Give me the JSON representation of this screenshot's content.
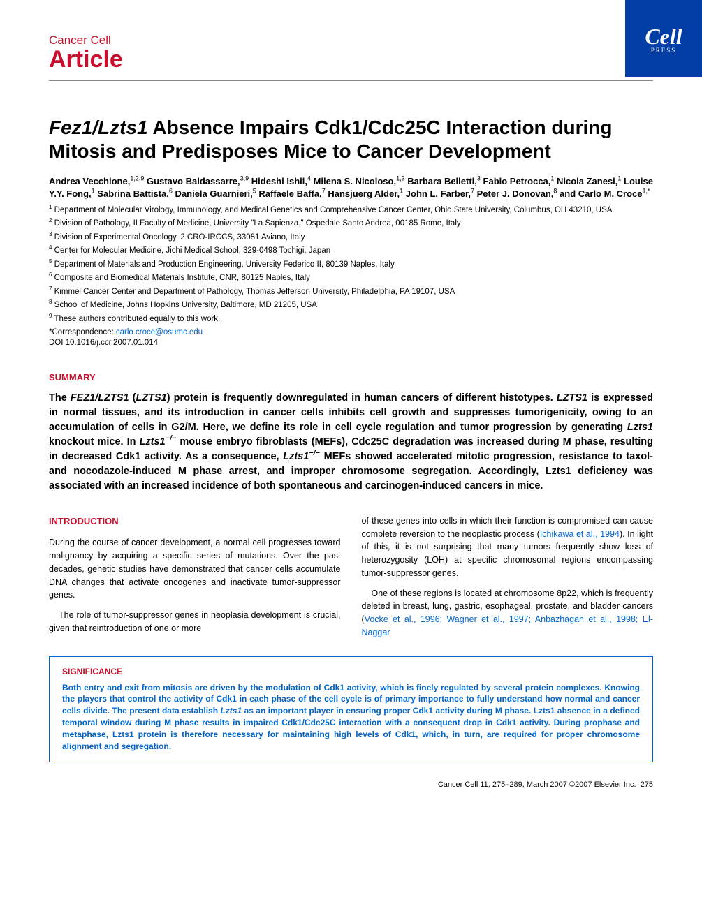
{
  "header": {
    "journal": "Cancer Cell",
    "type": "Article",
    "badge_main": "Cell",
    "badge_sub": "PRESS"
  },
  "title_html": "<span class='italic'>Fez1/Lzts1</span> Absence Impairs Cdk1/Cdc25C Interaction during Mitosis and Predisposes Mice to Cancer Development",
  "authors_html": "Andrea Vecchione,<sup>1,2,9</sup> Gustavo Baldassarre,<sup>3,9</sup> Hideshi Ishii,<sup>4</sup> Milena S. Nicoloso,<sup>1,3</sup> Barbara Belletti,<sup>3</sup> Fabio Petrocca,<sup>1</sup> Nicola Zanesi,<sup>1</sup> Louise Y.Y. Fong,<sup>1</sup> Sabrina Battista,<sup>6</sup> Daniela Guarnieri,<sup>5</sup> Raffaele Baffa,<sup>7</sup> Hansjuerg Alder,<sup>1</sup> John L. Farber,<sup>7</sup> Peter J. Donovan,<sup>8</sup> and Carlo M. Croce<sup>1,*</sup>",
  "affiliations": [
    "<sup>1</sup> Department of Molecular Virology, Immunology, and Medical Genetics and Comprehensive Cancer Center, Ohio State University, Columbus, OH 43210, USA",
    "<sup>2</sup> Division of Pathology, II Faculty of Medicine, University \"La Sapienza,\" Ospedale Santo Andrea, 00185 Rome, Italy",
    "<sup>3</sup> Division of Experimental Oncology, 2 CRO-IRCCS, 33081 Aviano, Italy",
    "<sup>4</sup> Center for Molecular Medicine, Jichi Medical School, 329-0498 Tochigi, Japan",
    "<sup>5</sup> Department of Materials and Production Engineering, University Federico II, 80139 Naples, Italy",
    "<sup>6</sup> Composite and Biomedical Materials Institute, CNR, 80125 Naples, Italy",
    "<sup>7</sup> Kimmel Cancer Center and Department of Pathology, Thomas Jefferson University, Philadelphia, PA 19107, USA",
    "<sup>8</sup> School of Medicine, Johns Hopkins University, Baltimore, MD 21205, USA",
    "<sup>9</sup> These authors contributed equally to this work."
  ],
  "correspondence_label": "*Correspondence: ",
  "correspondence_email": "carlo.croce@osumc.edu",
  "doi": "DOI 10.1016/j.ccr.2007.01.014",
  "sections": {
    "summary": {
      "heading": "SUMMARY",
      "text_html": "The <span class='italic'>FEZ1/LZTS1</span> (<span class='italic'>LZTS1</span>) protein is frequently downregulated in human cancers of different histotypes. <span class='italic'>LZTS1</span> is expressed in normal tissues, and its introduction in cancer cells inhibits cell growth and suppresses tumorigenicity, owing to an accumulation of cells in G2/M. Here, we define its role in cell cycle regulation and tumor progression by generating <span class='italic'>Lzts1</span> knockout mice. In <span class='italic'>Lzts1<sup>−/−</sup></span> mouse embryo fibroblasts (MEFs), Cdc25C degradation was increased during M phase, resulting in decreased Cdk1 activity. As a consequence, <span class='italic'>Lzts1<sup>−/−</sup></span> MEFs showed accelerated mitotic progression, resistance to taxol- and nocodazole-induced M phase arrest, and improper chromosome segregation. Accordingly, Lzts1 deficiency was associated with an increased incidence of both spontaneous and carcinogen-induced cancers in mice."
    },
    "introduction": {
      "heading": "INTRODUCTION",
      "col1_html": "<p>During the course of cancer development, a normal cell progresses toward malignancy by acquiring a specific series of mutations. Over the past decades, genetic studies have demonstrated that cancer cells accumulate DNA changes that activate oncogenes and inactivate tumor-suppressor genes.</p><p class='indent'>The role of tumor-suppressor genes in neoplasia development is crucial, given that reintroduction of one or more</p>",
      "col2_html": "<p>of these genes into cells in which their function is compromised can cause complete reversion to the neoplastic process (<a href='#'>Ichikawa et al., 1994</a>). In light of this, it is not surprising that many tumors frequently show loss of heterozygosity (LOH) at specific chromosomal regions encompassing tumor-suppressor genes.</p><p class='indent'>One of these regions is located at chromosome 8p22, which is frequently deleted in breast, lung, gastric, esophageal, prostate, and bladder cancers (<a href='#'>Vocke et al., 1996; Wagner et al., 1997; Anbazhagan et al., 1998; El-Naggar</a></p>"
    },
    "significance": {
      "heading": "SIGNIFICANCE",
      "text_html": "Both entry and exit from mitosis are driven by the modulation of Cdk1 activity, which is finely regulated by several protein complexes. Knowing the players that control the activity of Cdk1 in each phase of the cell cycle is of primary importance to fully understand how normal and cancer cells divide. The present data establish <span class='italic'>Lzts1</span> as an important player in ensuring proper Cdk1 activity during M phase. Lzts1 absence in a defined temporal window during M phase results in impaired Cdk1/Cdc25C interaction with a consequent drop in Cdk1 activity. During prophase and metaphase, Lzts1 protein is therefore necessary for maintaining high levels of Cdk1, which, in turn, are required for proper chromosome alignment and segregation."
    }
  },
  "footer": {
    "citation": "Cancer Cell 11, 275–289, March 2007 ©2007 Elsevier Inc.",
    "page": "275"
  },
  "colors": {
    "brand_red": "#c8102e",
    "brand_blue": "#003da5",
    "link_blue": "#0066cc",
    "text": "#000000",
    "background": "#ffffff"
  }
}
